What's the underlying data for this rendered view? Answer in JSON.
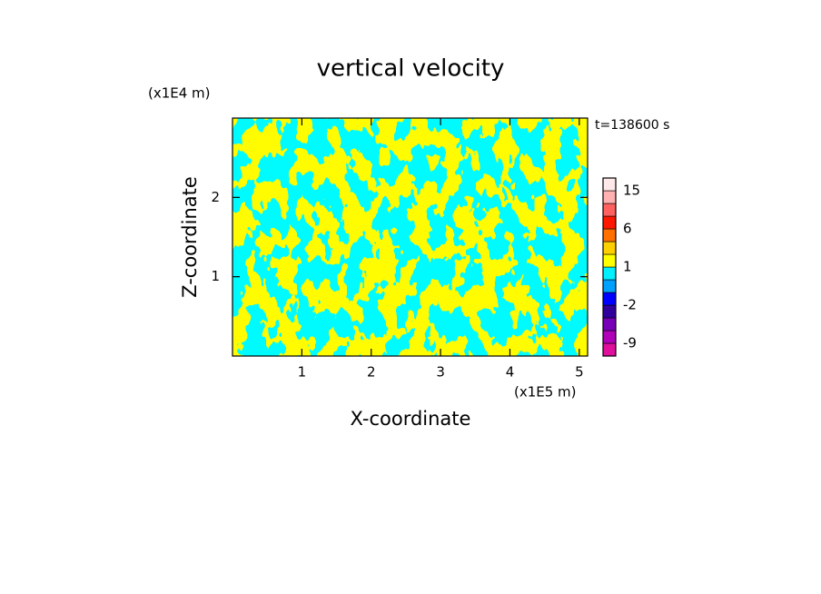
{
  "chart_data": {
    "type": "contour",
    "title": "vertical velocity",
    "x_label": "X-coordinate",
    "y_label": "Z-coordinate",
    "x_multiplier": "(x1E5 m)",
    "y_multiplier": "(x1E4 m)",
    "annotation": "t=138600 s",
    "xlim": [
      0,
      5.12
    ],
    "xticks": [
      1,
      2,
      3,
      4,
      5
    ],
    "ylim": [
      0,
      3
    ],
    "yticks": [
      1,
      2
    ],
    "colorbar": {
      "levels": [
        -12,
        -9,
        -6,
        -4,
        -2,
        -1,
        0,
        1,
        2,
        4,
        6,
        9,
        12,
        15,
        20
      ],
      "colors": [
        "#e0109c",
        "#b000b8",
        "#7800b8",
        "#30009c",
        "#0000ff",
        "#00a0ff",
        "#00f0ff",
        "#ffff00",
        "#ffd000",
        "#ff7000",
        "#ff1800",
        "#ff6060",
        "#ffb0b0",
        "#ffe8e8"
      ],
      "ticks": [
        -9,
        -2,
        1,
        6,
        15
      ]
    }
  }
}
